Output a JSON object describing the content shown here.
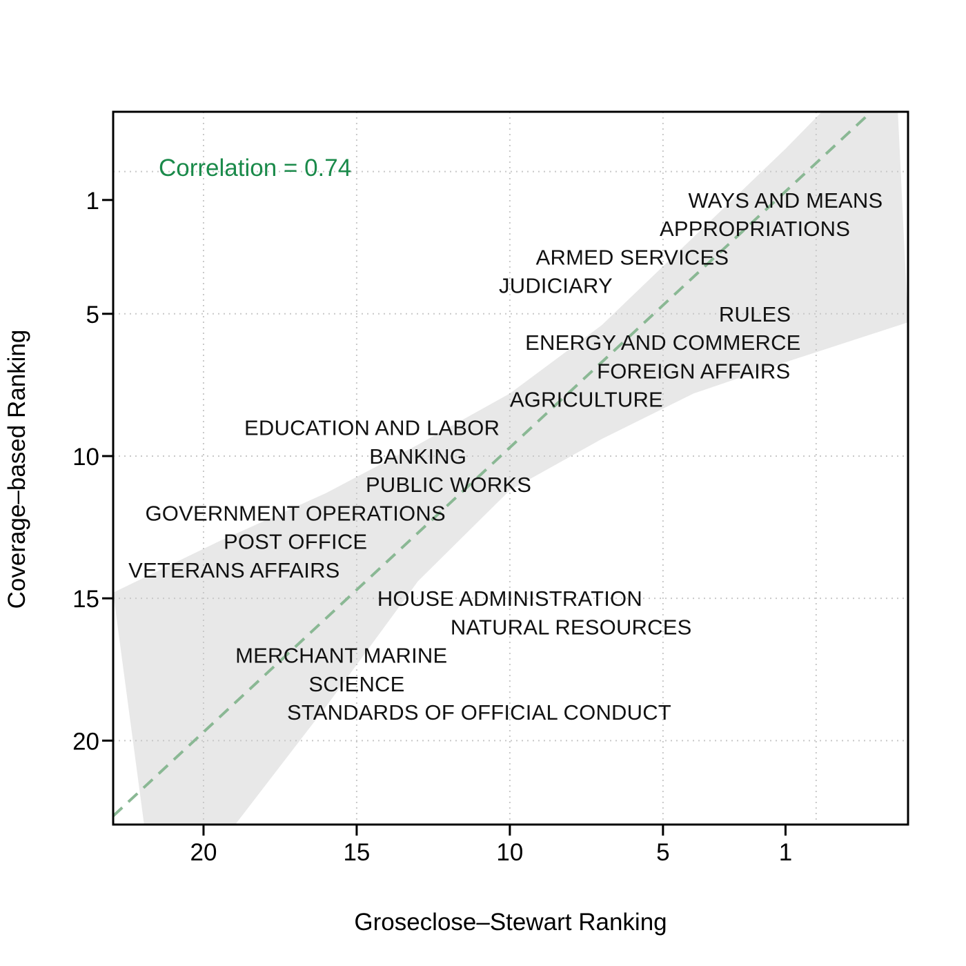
{
  "chart_data": {
    "type": "scatter",
    "xlabel": "Groseclose–Stewart Ranking",
    "ylabel": "Coverage–based Ranking",
    "xlim": [
      22.95,
      -3.0
    ],
    "ylim": [
      -2.1,
      22.95
    ],
    "x_ticks": [
      20,
      15,
      10,
      5,
      1
    ],
    "y_ticks": [
      1,
      5,
      10,
      15,
      20
    ],
    "grid": true,
    "grid_x_values": [
      20,
      15,
      10,
      5,
      0
    ],
    "grid_y_values": [
      0,
      5,
      10,
      15,
      20
    ],
    "annotation": "Correlation = 0.74",
    "annotation_color": "#1a8a4a",
    "fit_line": {
      "intercept": -0.3,
      "slope": 1.0,
      "color": "#8ab894",
      "style": "dashed"
    },
    "confidence_band_color": "#e8e8e8",
    "confidence_band": {
      "upper": [
        [
          22.95,
          14.8
        ],
        [
          19.5,
          13.0
        ],
        [
          16.0,
          11.3
        ],
        [
          13.0,
          9.6
        ],
        [
          10.0,
          7.8
        ],
        [
          7.0,
          5.4
        ],
        [
          4.0,
          2.3
        ],
        [
          1.0,
          -0.8
        ],
        [
          -2.55,
          -4.7
        ]
      ],
      "lower": [
        [
          21.5,
          26.5
        ],
        [
          19.0,
          23.0
        ],
        [
          16.0,
          18.8
        ],
        [
          13.0,
          14.4
        ],
        [
          10.0,
          11.2
        ],
        [
          7.0,
          9.4
        ],
        [
          4.0,
          7.8
        ],
        [
          1.0,
          6.7
        ],
        [
          -3.0,
          5.3
        ]
      ]
    },
    "points": [
      {
        "label": "WAYS AND MEANS",
        "x": 1,
        "y": 1
      },
      {
        "label": "APPROPRIATIONS",
        "x": 2,
        "y": 2
      },
      {
        "label": "ARMED SERVICES",
        "x": 6,
        "y": 3
      },
      {
        "label": "JUDICIARY",
        "x": 8.5,
        "y": 4
      },
      {
        "label": "RULES",
        "x": 2,
        "y": 5
      },
      {
        "label": "ENERGY AND COMMERCE",
        "x": 5,
        "y": 6
      },
      {
        "label": "FOREIGN AFFAIRS",
        "x": 4,
        "y": 7
      },
      {
        "label": "AGRICULTURE",
        "x": 7.5,
        "y": 8
      },
      {
        "label": "EDUCATION AND LABOR",
        "x": 14.5,
        "y": 9
      },
      {
        "label": "BANKING",
        "x": 13,
        "y": 10
      },
      {
        "label": "PUBLIC WORKS",
        "x": 12,
        "y": 11
      },
      {
        "label": "GOVERNMENT OPERATIONS",
        "x": 17,
        "y": 12
      },
      {
        "label": "POST OFFICE",
        "x": 17,
        "y": 13
      },
      {
        "label": "VETERANS AFFAIRS",
        "x": 19,
        "y": 14
      },
      {
        "label": "HOUSE ADMINISTRATION",
        "x": 10,
        "y": 15
      },
      {
        "label": "NATURAL RESOURCES",
        "x": 8,
        "y": 16
      },
      {
        "label": "MERCHANT MARINE",
        "x": 15.5,
        "y": 17
      },
      {
        "label": "SCIENCE",
        "x": 15,
        "y": 18
      },
      {
        "label": "STANDARDS OF OFFICIAL CONDUCT",
        "x": 11,
        "y": 19
      }
    ]
  }
}
